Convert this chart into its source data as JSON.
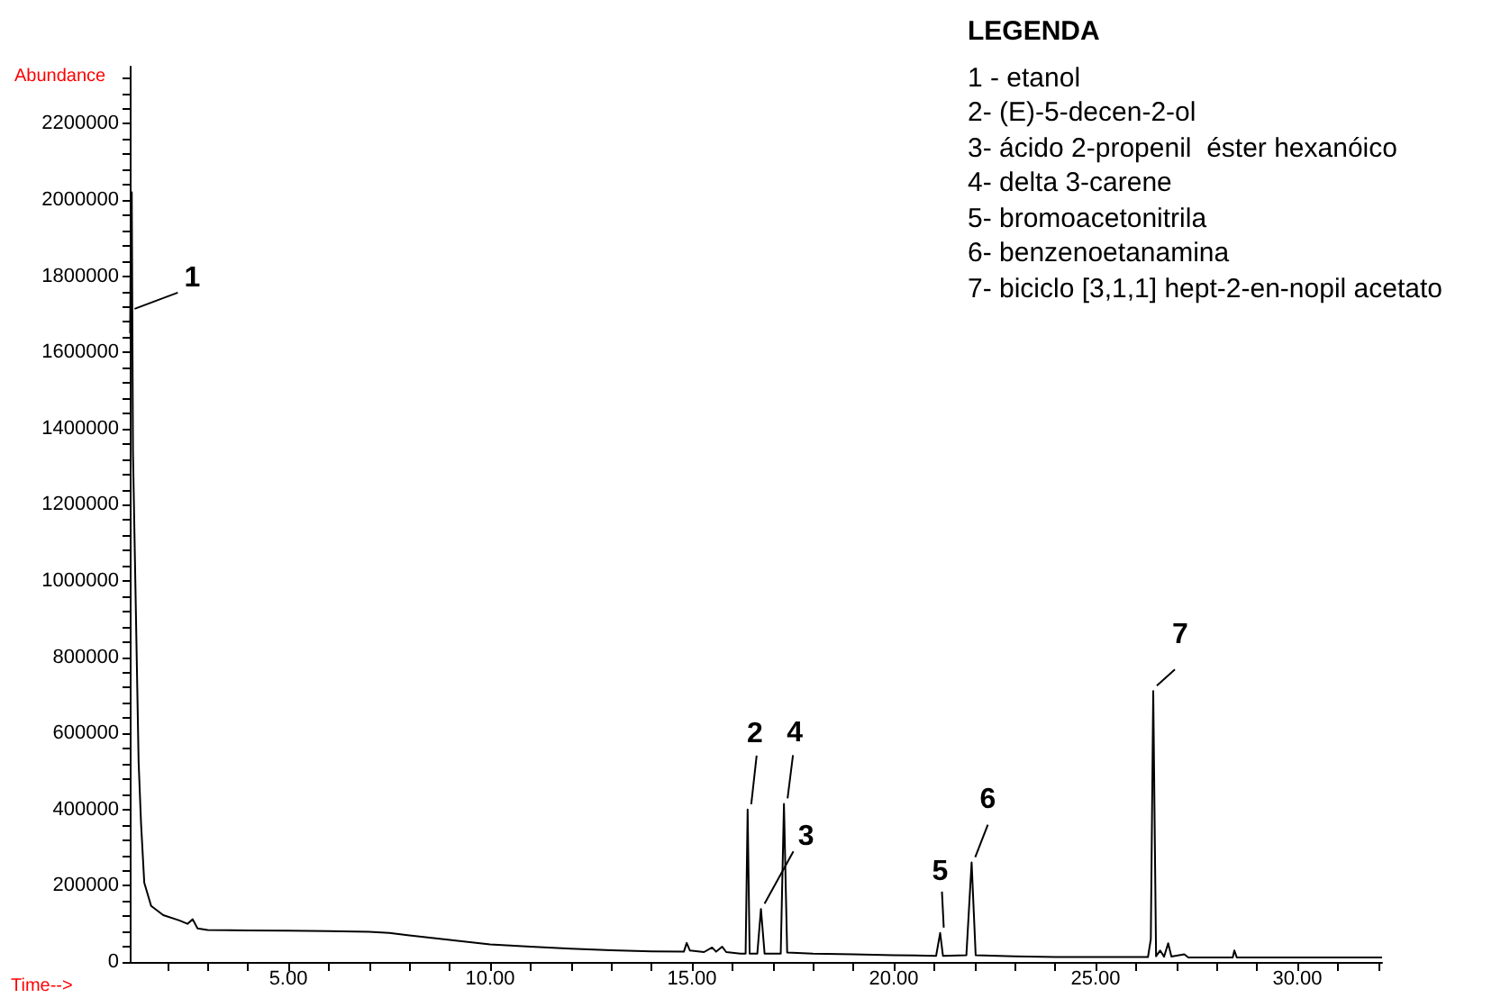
{
  "chart_data": {
    "type": "line",
    "xlabel": "Time-->",
    "ylabel": "Abundance",
    "legend_title": "LEGENDA",
    "marker": "none",
    "annotations": [
      {
        "text": "1",
        "x": 1.1,
        "y": 1700000
      },
      {
        "text": "2",
        "x": 16.38,
        "y": 400000
      },
      {
        "text": "3",
        "x": 16.71,
        "y": 139000
      },
      {
        "text": "4",
        "x": 17.28,
        "y": 415000
      },
      {
        "text": "5",
        "x": 21.15,
        "y": 76000
      },
      {
        "text": "6",
        "x": 21.93,
        "y": 261000
      },
      {
        "text": "7",
        "x": 26.43,
        "y": 711000
      },
      "1 - etanol",
      "2- (E)-5-decen-2-ol",
      "3- ácido 2-propenil  éster hexanóico",
      "4- delta 3-carene",
      "5- bromoacetonitrila",
      "6- benzenoetanamina",
      "7- biciclo [3,1,1] hept-2-en-nopil acetato"
    ],
    "x": [
      1.08,
      1.1,
      1.12,
      1.15,
      1.29,
      1.35,
      1.43,
      1.6,
      1.9,
      2.3,
      2.5,
      2.63,
      2.75,
      3.0,
      4.0,
      5.0,
      6.0,
      7.0,
      7.5,
      8.0,
      9.0,
      10.0,
      11.0,
      12.0,
      13.0,
      14.0,
      14.8,
      14.87,
      14.95,
      15.3,
      15.5,
      15.6,
      15.75,
      15.85,
      16.2,
      16.33,
      16.38,
      16.43,
      16.62,
      16.71,
      16.8,
      17.2,
      17.28,
      17.36,
      18.0,
      19.0,
      20.0,
      21.05,
      21.15,
      21.22,
      21.8,
      21.93,
      22.03,
      23.0,
      24.0,
      25.0,
      26.3,
      26.37,
      26.43,
      26.5,
      26.6,
      26.7,
      26.8,
      26.88,
      27.2,
      27.3,
      28.4,
      28.44,
      28.5,
      32.1
    ],
    "series": [
      {
        "color": "#000000",
        "values": [
          1650000,
          1960000,
          2020000,
          1340000,
          525000,
          364000,
          208000,
          147000,
          123000,
          109000,
          100000,
          112000,
          88000,
          84000,
          83000,
          82000,
          81000,
          79000,
          76000,
          70000,
          58000,
          46000,
          40000,
          35000,
          31000,
          28000,
          27000,
          50000,
          30000,
          26000,
          38000,
          27000,
          40000,
          26000,
          22000,
          22000,
          400000,
          22000,
          22000,
          139000,
          22000,
          22000,
          415000,
          25000,
          22000,
          20000,
          18000,
          16000,
          76000,
          16000,
          18000,
          261000,
          18000,
          15000,
          13000,
          13000,
          13000,
          60000,
          711000,
          15000,
          30000,
          14000,
          49000,
          14000,
          20000,
          12000,
          12000,
          30000,
          12000,
          12000
        ]
      }
    ],
    "xlim": [
      1.07,
      32.1
    ],
    "ylim": [
      0,
      2350000
    ],
    "xticks": [
      {
        "value": 2,
        "label": null
      },
      {
        "value": 3,
        "label": null
      },
      {
        "value": 4,
        "label": null
      },
      {
        "value": 5,
        "label": "5.00"
      },
      {
        "value": 6,
        "label": null
      },
      {
        "value": 7,
        "label": null
      },
      {
        "value": 8,
        "label": null
      },
      {
        "value": 9,
        "label": null
      },
      {
        "value": 10,
        "label": "10.00"
      },
      {
        "value": 11,
        "label": null
      },
      {
        "value": 12,
        "label": null
      },
      {
        "value": 13,
        "label": null
      },
      {
        "value": 14,
        "label": null
      },
      {
        "value": 15,
        "label": "15.00"
      },
      {
        "value": 16,
        "label": null
      },
      {
        "value": 17,
        "label": null
      },
      {
        "value": 18,
        "label": null
      },
      {
        "value": 19,
        "label": null
      },
      {
        "value": 20,
        "label": "20.00"
      },
      {
        "value": 21,
        "label": null
      },
      {
        "value": 22,
        "label": null
      },
      {
        "value": 23,
        "label": null
      },
      {
        "value": 24,
        "label": null
      },
      {
        "value": 25,
        "label": "25.00"
      },
      {
        "value": 26,
        "label": null
      },
      {
        "value": 27,
        "label": null
      },
      {
        "value": 28,
        "label": null
      },
      {
        "value": 29,
        "label": null
      },
      {
        "value": 30,
        "label": "30.00"
      },
      {
        "value": 31,
        "label": null
      },
      {
        "value": 32,
        "label": null
      }
    ],
    "yticks": [
      0,
      {
        "value": 40000,
        "label": null
      },
      {
        "value": 80000,
        "label": null
      },
      {
        "value": 120000,
        "label": null
      },
      {
        "value": 160000,
        "label": null
      },
      200000,
      {
        "value": 240000,
        "label": null
      },
      {
        "value": 280000,
        "label": null
      },
      {
        "value": 320000,
        "label": null
      },
      {
        "value": 360000,
        "label": null
      },
      400000,
      {
        "value": 440000,
        "label": null
      },
      {
        "value": 480000,
        "label": null
      },
      {
        "value": 520000,
        "label": null
      },
      {
        "value": 560000,
        "label": null
      },
      600000,
      {
        "value": 640000,
        "label": null
      },
      {
        "value": 680000,
        "label": null
      },
      {
        "value": 720000,
        "label": null
      },
      {
        "value": 760000,
        "label": null
      },
      800000,
      {
        "value": 840000,
        "label": null
      },
      {
        "value": 880000,
        "label": null
      },
      {
        "value": 920000,
        "label": null
      },
      {
        "value": 960000,
        "label": null
      },
      1000000,
      {
        "value": 1040000,
        "label": null
      },
      {
        "value": 1080000,
        "label": null
      },
      {
        "value": 1120000,
        "label": null
      },
      {
        "value": 1160000,
        "label": null
      },
      1200000,
      {
        "value": 1240000,
        "label": null
      },
      {
        "value": 1280000,
        "label": null
      },
      {
        "value": 1320000,
        "label": null
      },
      {
        "value": 1360000,
        "label": null
      },
      1400000,
      {
        "value": 1440000,
        "label": null
      },
      {
        "value": 1480000,
        "label": null
      },
      {
        "value": 1520000,
        "label": null
      },
      {
        "value": 1560000,
        "label": null
      },
      1600000,
      {
        "value": 1640000,
        "label": null
      },
      {
        "value": 1680000,
        "label": null
      },
      {
        "value": 1720000,
        "label": null
      },
      {
        "value": 1760000,
        "label": null
      },
      1800000,
      {
        "value": 1840000,
        "label": null
      },
      {
        "value": 1880000,
        "label": null
      },
      {
        "value": 1920000,
        "label": null
      },
      {
        "value": 1960000,
        "label": null
      },
      2000000,
      {
        "value": 2040000,
        "label": null
      },
      {
        "value": 2080000,
        "label": null
      },
      {
        "value": 2120000,
        "label": null
      },
      {
        "value": 2160000,
        "label": null
      },
      2200000,
      {
        "value": 2240000,
        "label": null
      },
      {
        "value": 2280000,
        "label": null
      },
      {
        "value": 2320000,
        "label": null
      }
    ]
  }
}
